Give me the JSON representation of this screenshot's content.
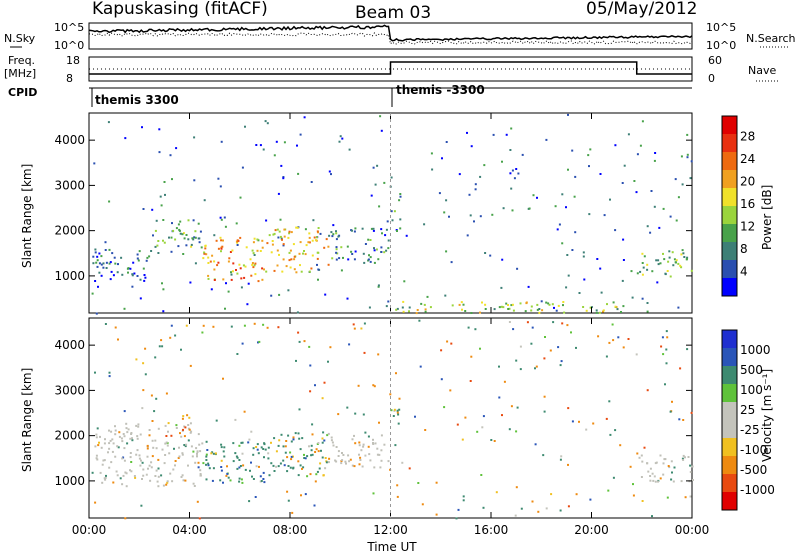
{
  "header": {
    "station": "Kapuskasing (fitACF)",
    "beam": "Beam 03",
    "date": "05/May/2012"
  },
  "strip_labels": {
    "nsky": "N.Sky",
    "freq": "Freq.",
    "freq_unit": "[MHz]",
    "cpid": "CPID",
    "nsearch": "N.Search",
    "nave": "Nave",
    "noise_ticks_left": [
      "10^5",
      "10^0"
    ],
    "noise_ticks_right": [
      "10^5",
      "10^0"
    ],
    "freq_ticks": [
      "18",
      "8"
    ],
    "nave_ticks": [
      "60",
      "0"
    ]
  },
  "cpid_labels": [
    "themis 3300",
    "themis -3300"
  ],
  "colors": {
    "power_scale": [
      "#0000ff",
      "#2a4fb0",
      "#3d7f76",
      "#48a24a",
      "#9ad43c",
      "#f0e12a",
      "#f0a020",
      "#ee6a10",
      "#e83010",
      "#e00000"
    ],
    "velocity_scale": [
      "#1f2fd0",
      "#2a55b8",
      "#3d8a70",
      "#5fc23a",
      "#c4c4bc",
      "#c4c4bc",
      "#f0c020",
      "#ee8a10",
      "#e84a10",
      "#e00000"
    ],
    "ground_scatter": "#c0c0b8"
  },
  "chart_data": [
    {
      "type": "heatmap",
      "panel": "power",
      "title": "",
      "ylabel": "Slant Range [km]",
      "xlabel": "",
      "x_ticks": [
        "00:00",
        "04:00",
        "08:00",
        "12:00",
        "16:00",
        "20:00",
        "00:00"
      ],
      "y_ticks": [
        "1000",
        "2000",
        "3000",
        "4000"
      ],
      "ylim": [
        180,
        4600
      ],
      "xlim_hours": [
        0,
        24
      ],
      "colorbar_label": "Power [dB]",
      "colorbar_ticks": [
        "4",
        "8",
        "12",
        "16",
        "20",
        "24",
        "28"
      ],
      "colorbar_range": [
        0,
        30
      ],
      "scatter_regions": [
        {
          "t_start": 0.2,
          "t_end": 2.5,
          "r_low": 900,
          "r_high": 1600,
          "value": 6
        },
        {
          "t_start": 2.5,
          "t_end": 4.5,
          "r_low": 1500,
          "r_high": 2300,
          "value": 10
        },
        {
          "t_start": 4.5,
          "t_end": 7.0,
          "r_low": 900,
          "r_high": 1900,
          "value": 20
        },
        {
          "t_start": 7.0,
          "t_end": 9.5,
          "r_low": 1100,
          "r_high": 2100,
          "value": 18
        },
        {
          "t_start": 9.5,
          "t_end": 11.9,
          "r_low": 1300,
          "r_high": 2100,
          "value": 8
        },
        {
          "t_start": 12.0,
          "t_end": 21.5,
          "r_low": 200,
          "r_high": 450,
          "value": 14
        },
        {
          "t_start": 12.0,
          "t_end": 12.4,
          "r_low": 2000,
          "r_high": 2900,
          "value": 8
        },
        {
          "t_start": 21.8,
          "t_end": 24.0,
          "r_low": 1000,
          "r_high": 1600,
          "value": 12
        }
      ]
    },
    {
      "type": "heatmap",
      "panel": "velocity",
      "title": "",
      "ylabel": "Slant Range [km]",
      "xlabel": "Time UT",
      "x_ticks": [
        "00:00",
        "04:00",
        "08:00",
        "12:00",
        "16:00",
        "20:00",
        "00:00"
      ],
      "y_ticks": [
        "1000",
        "2000",
        "3000",
        "4000"
      ],
      "ylim": [
        180,
        4600
      ],
      "xlim_hours": [
        0,
        24
      ],
      "colorbar_label": "Velocity [m s⁻¹]",
      "colorbar_ticks": [
        "1000",
        "500",
        "100",
        "25",
        "-25",
        "-100",
        "-500",
        "-1000"
      ],
      "scatter_regions": [
        {
          "t_start": 0.2,
          "t_end": 4.5,
          "r_low": 900,
          "r_high": 2300,
          "value": 0
        },
        {
          "t_start": 4.5,
          "t_end": 7.0,
          "r_low": 900,
          "r_high": 1900,
          "value": 300
        },
        {
          "t_start": 7.0,
          "t_end": 9.5,
          "r_low": 1100,
          "r_high": 2100,
          "value": 200
        },
        {
          "t_start": 9.5,
          "t_end": 11.9,
          "r_low": 1300,
          "r_high": 2100,
          "value": 0
        },
        {
          "t_start": 3.0,
          "t_end": 4.0,
          "r_low": 2000,
          "r_high": 2500,
          "value": -300
        },
        {
          "t_start": 12.0,
          "t_end": 12.4,
          "r_low": 2000,
          "r_high": 2900,
          "value": 200
        },
        {
          "t_start": 21.8,
          "t_end": 24.0,
          "r_low": 1000,
          "r_high": 1600,
          "value": 0
        }
      ]
    }
  ]
}
